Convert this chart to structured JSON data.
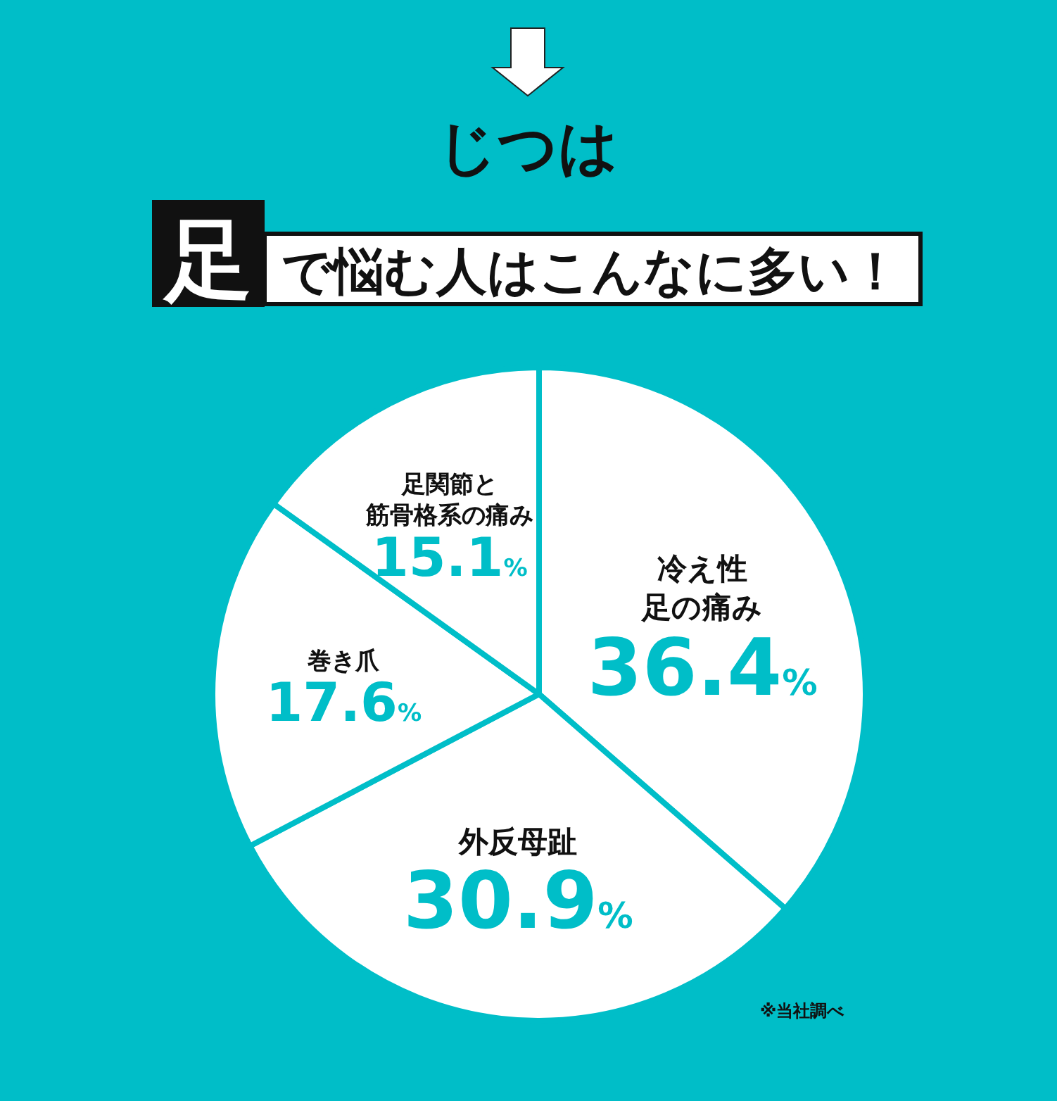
{
  "chart_data": {
    "type": "pie",
    "title": "じつは",
    "subtitle": "足で悩む人はこんなに多い！",
    "categories": [
      "冷え性足の痛み",
      "外反母趾",
      "巻き爪",
      "足関節と筋骨格系の痛み"
    ],
    "values": [
      36.4,
      30.9,
      17.6,
      15.1
    ],
    "colors": [
      "#ffffff",
      "#ffffff",
      "#ffffff",
      "#ffffff"
    ],
    "value_labels": [
      "36.4%",
      "30.9%",
      "17.6%",
      "15.1%"
    ],
    "annotations": [
      "※当社調べ"
    ]
  }
}
